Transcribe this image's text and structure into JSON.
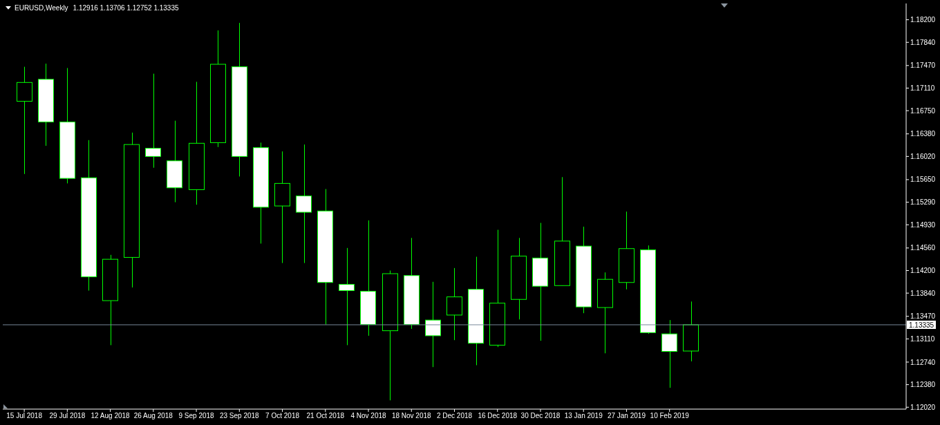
{
  "chart_data": {
    "type": "candlestick",
    "title": "EURUSD,Weekly",
    "subtitle": "1.12916 1.13706 1.12752 1.13335",
    "x": [
      "2018-07-15",
      "2018-07-22",
      "2018-07-29",
      "2018-08-05",
      "2018-08-12",
      "2018-08-19",
      "2018-08-26",
      "2018-09-02",
      "2018-09-09",
      "2018-09-16",
      "2018-09-23",
      "2018-09-30",
      "2018-10-07",
      "2018-10-14",
      "2018-10-21",
      "2018-10-28",
      "2018-11-04",
      "2018-11-11",
      "2018-11-18",
      "2018-11-25",
      "2018-12-02",
      "2018-12-09",
      "2018-12-16",
      "2018-12-23",
      "2018-12-30",
      "2019-01-06",
      "2019-01-13",
      "2019-01-20",
      "2019-01-27",
      "2019-02-03",
      "2019-02-10",
      "2019-02-17"
    ],
    "ohlc": [
      [
        1.169,
        1.1745,
        1.1574,
        1.172
      ],
      [
        1.1725,
        1.175,
        1.1619,
        1.1657
      ],
      [
        1.1657,
        1.1743,
        1.1559,
        1.1567
      ],
      [
        1.1568,
        1.1628,
        1.1388,
        1.141
      ],
      [
        1.1372,
        1.1445,
        1.1301,
        1.1438
      ],
      [
        1.1441,
        1.164,
        1.1393,
        1.1621
      ],
      [
        1.1615,
        1.1734,
        1.1584,
        1.1602
      ],
      [
        1.1595,
        1.1659,
        1.1529,
        1.1552
      ],
      [
        1.1549,
        1.1721,
        1.1525,
        1.1623
      ],
      [
        1.1624,
        1.1803,
        1.1617,
        1.1749
      ],
      [
        1.1745,
        1.1815,
        1.157,
        1.1602
      ],
      [
        1.1616,
        1.1624,
        1.1463,
        1.1521
      ],
      [
        1.1523,
        1.161,
        1.1432,
        1.1559
      ],
      [
        1.1539,
        1.1621,
        1.1432,
        1.1513
      ],
      [
        1.1515,
        1.155,
        1.1334,
        1.1401
      ],
      [
        1.1398,
        1.1456,
        1.1301,
        1.1388
      ],
      [
        1.1387,
        1.15,
        1.1316,
        1.1334
      ],
      [
        1.1324,
        1.142,
        1.1213,
        1.1415
      ],
      [
        1.1412,
        1.1472,
        1.1327,
        1.1334
      ],
      [
        1.1341,
        1.1402,
        1.1266,
        1.1316
      ],
      [
        1.1349,
        1.1424,
        1.1309,
        1.1378
      ],
      [
        1.139,
        1.1442,
        1.1269,
        1.1304
      ],
      [
        1.1301,
        1.1485,
        1.1298,
        1.1368
      ],
      [
        1.1374,
        1.1472,
        1.1342,
        1.1443
      ],
      [
        1.144,
        1.1496,
        1.1308,
        1.1395
      ],
      [
        1.1396,
        1.1569,
        1.1396,
        1.1467
      ],
      [
        1.1459,
        1.149,
        1.1352,
        1.1362
      ],
      [
        1.1361,
        1.1417,
        1.1288,
        1.1406
      ],
      [
        1.1401,
        1.1514,
        1.139,
        1.1455
      ],
      [
        1.1453,
        1.146,
        1.1319,
        1.1321
      ],
      [
        1.1319,
        1.1341,
        1.1233,
        1.1291
      ],
      [
        1.12916,
        1.13706,
        1.12752,
        1.13335
      ]
    ],
    "color": "#00ff00",
    "colors": [
      "#000000",
      "#ffffff",
      "#ffffff",
      "#ffffff",
      "#000000",
      "#000000",
      "#ffffff",
      "#ffffff",
      "#000000",
      "#000000",
      "#ffffff",
      "#ffffff",
      "#000000",
      "#ffffff",
      "#ffffff",
      "#ffffff",
      "#ffffff",
      "#000000",
      "#ffffff",
      "#ffffff",
      "#000000",
      "#ffffff",
      "#000000",
      "#000000",
      "#ffffff",
      "#000000",
      "#ffffff",
      "#000000",
      "#000000",
      "#ffffff",
      "#ffffff",
      "#000000"
    ],
    "xlim": [
      "2018-07-08",
      "2019-04-28"
    ],
    "xticks": [
      {
        "value": "2018-07-15",
        "label": "15 Jul 2018"
      },
      {
        "value": "2018-07-29",
        "label": "29 Jul 2018"
      },
      {
        "value": "2018-08-12",
        "label": "12 Aug 2018"
      },
      {
        "value": "2018-08-26",
        "label": "26 Aug 2018"
      },
      {
        "value": "2018-09-09",
        "label": "9 Sep 2018"
      },
      {
        "value": "2018-09-23",
        "label": "23 Sep 2018"
      },
      {
        "value": "2018-10-07",
        "label": "7 Oct 2018"
      },
      {
        "value": "2018-10-21",
        "label": "21 Oct 2018"
      },
      {
        "value": "2018-11-04",
        "label": "4 Nov 2018"
      },
      {
        "value": "2018-11-18",
        "label": "18 Nov 2018"
      },
      {
        "value": "2018-12-02",
        "label": "2 Dec 2018"
      },
      {
        "value": "2018-12-16",
        "label": "16 Dec 2018"
      },
      {
        "value": "2018-12-30",
        "label": "30 Dec 2018"
      },
      {
        "value": "2019-01-13",
        "label": "13 Jan 2019"
      },
      {
        "value": "2019-01-27",
        "label": "27 Jan 2019"
      },
      {
        "value": "2019-02-10",
        "label": "10 Feb 2019"
      }
    ],
    "ylim": [
      1.1199,
      1.1846
    ],
    "yticks": [
      {
        "value": 1.182,
        "label": "1.18200"
      },
      {
        "value": 1.1784,
        "label": "1.17840"
      },
      {
        "value": 1.1747,
        "label": "1.17470"
      },
      {
        "value": 1.1711,
        "label": "1.17110"
      },
      {
        "value": 1.1675,
        "label": "1.16750"
      },
      {
        "value": 1.1638,
        "label": "1.16380"
      },
      {
        "value": 1.1602,
        "label": "1.16020"
      },
      {
        "value": 1.1565,
        "label": "1.15650"
      },
      {
        "value": 1.1529,
        "label": "1.15290"
      },
      {
        "value": 1.1493,
        "label": "1.14930"
      },
      {
        "value": 1.1456,
        "label": "1.14560"
      },
      {
        "value": 1.142,
        "label": "1.14200"
      },
      {
        "value": 1.1384,
        "label": "1.13840"
      },
      {
        "value": 1.1347,
        "label": "1.13470"
      },
      {
        "value": 1.1311,
        "label": "1.13110"
      },
      {
        "value": 1.1274,
        "label": "1.12740"
      },
      {
        "value": 1.1238,
        "label": "1.12380"
      },
      {
        "value": 1.1202,
        "label": "1.12020"
      }
    ],
    "ref_lines": [
      {
        "axis": "y",
        "value": 1.13335,
        "label": "1.13335",
        "color": "#778899"
      }
    ]
  }
}
